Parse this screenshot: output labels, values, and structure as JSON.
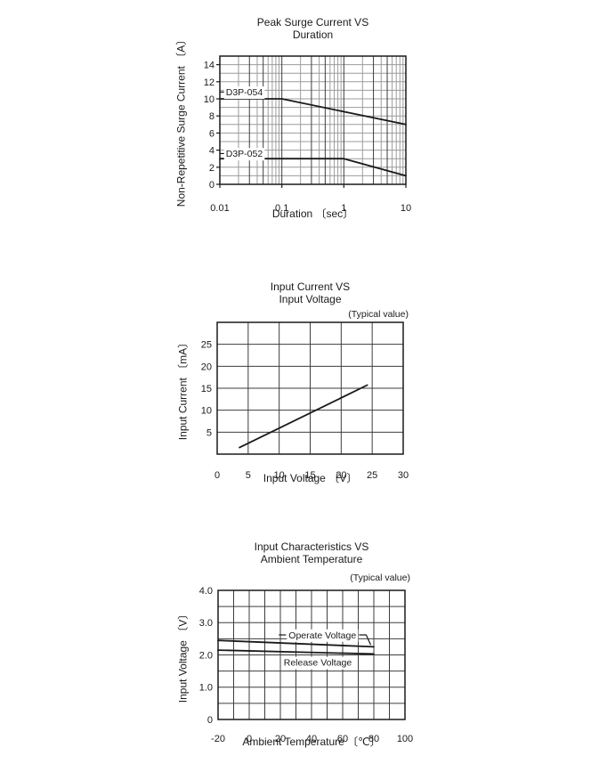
{
  "colors": {
    "background": "#ffffff",
    "plot_border": "#1a1a1a",
    "curve": "#1a1a1a",
    "grid_light": "#9c9c9c",
    "grid_dark": "#3d3d3d",
    "text": "#1a1a1a",
    "label_background": "#ffffff"
  },
  "chart_data": [
    {
      "id": "peak-surge-vs-duration",
      "type": "line",
      "title": "Peak Surge Current VS Duration",
      "title_lines": [
        "Peak Surge Current VS",
        "Duration"
      ],
      "note": "",
      "xlabel": "Duration 〔sec〕",
      "ylabel": "Non-Repetitive Surge Current 〔A〕",
      "x_scale": "log",
      "xlim": [
        0.01,
        10
      ],
      "x_ticks": [
        {
          "v": 0.01,
          "label": "0.01"
        },
        {
          "v": 0.1,
          "label": "0.1"
        },
        {
          "v": 1,
          "label": "1"
        },
        {
          "v": 10,
          "label": "10"
        }
      ],
      "log_minor_mults": [
        2,
        3,
        4,
        5,
        6,
        7,
        8,
        9
      ],
      "log_emphasized_mults": [
        3,
        5
      ],
      "ylim": [
        0,
        15
      ],
      "y_grid_step": 1,
      "y_ticks": [
        {
          "v": 0,
          "label": "0"
        },
        {
          "v": 2,
          "label": "2"
        },
        {
          "v": 4,
          "label": "4"
        },
        {
          "v": 6,
          "label": "6"
        },
        {
          "v": 8,
          "label": "8"
        },
        {
          "v": 10,
          "label": "10"
        },
        {
          "v": 12,
          "label": "12"
        },
        {
          "v": 14,
          "label": "14"
        }
      ],
      "outer_ticks": true,
      "grid": "log-mixed",
      "series": [
        {
          "name": "D3P-054",
          "points": [
            [
              0.01,
              10
            ],
            [
              0.1,
              10
            ],
            [
              10,
              7
            ]
          ],
          "label": {
            "text": "D3P-054",
            "x": 0.0125,
            "y": 10.8,
            "anchor": "start",
            "leader": "axis-dash"
          }
        },
        {
          "name": "D3P-052",
          "points": [
            [
              0.01,
              3
            ],
            [
              1,
              3
            ],
            [
              10,
              1
            ]
          ],
          "label": {
            "text": "D3P-052",
            "x": 0.0125,
            "y": 3.6,
            "anchor": "start",
            "leader": "axis-dash"
          }
        }
      ]
    },
    {
      "id": "input-current-vs-input-voltage",
      "type": "line",
      "title": "Input Current VS Input Voltage",
      "title_lines": [
        "Input Current VS",
        "Input Voltage"
      ],
      "note": "(Typical value)",
      "xlabel": "Input Voltage 〔V〕",
      "ylabel": "Input Current 〔mA〕",
      "x_scale": "linear",
      "xlim": [
        0,
        30
      ],
      "x_grid_step": 5,
      "x_ticks": [
        {
          "v": 0,
          "label": "0"
        },
        {
          "v": 5,
          "label": "5"
        },
        {
          "v": 10,
          "label": "10"
        },
        {
          "v": 15,
          "label": "15"
        },
        {
          "v": 20,
          "label": "20"
        },
        {
          "v": 25,
          "label": "25"
        },
        {
          "v": 30,
          "label": "30"
        }
      ],
      "ylim": [
        0,
        30
      ],
      "y_grid_step": 5,
      "y_ticks": [
        {
          "v": 5,
          "label": "5"
        },
        {
          "v": 10,
          "label": "10"
        },
        {
          "v": 15,
          "label": "15"
        },
        {
          "v": 20,
          "label": "20"
        },
        {
          "v": 25,
          "label": "25"
        }
      ],
      "outer_ticks": false,
      "grid": "linear-dark",
      "series": [
        {
          "name": "input-current",
          "points": [
            [
              3.6,
              1.5
            ],
            [
              24.2,
              15.7
            ]
          ]
        }
      ]
    },
    {
      "id": "input-characteristics-vs-ambient-temperature",
      "type": "line",
      "title": "Input Characteristics VS Ambient Temperature",
      "title_lines": [
        "Input Characteristics VS",
        "Ambient Temperature"
      ],
      "note": "(Typical value)",
      "xlabel": "Ambient Temperature 〔℃〕",
      "ylabel": "Input Voltage 〔V〕",
      "x_scale": "linear",
      "xlim": [
        -20,
        100
      ],
      "x_grid_step": 10,
      "x_ticks": [
        {
          "v": -20,
          "label": "-20"
        },
        {
          "v": 0,
          "label": "0"
        },
        {
          "v": 20,
          "label": "20"
        },
        {
          "v": 40,
          "label": "40"
        },
        {
          "v": 60,
          "label": "60"
        },
        {
          "v": 80,
          "label": "80"
        },
        {
          "v": 100,
          "label": "100"
        }
      ],
      "ylim": [
        0,
        4
      ],
      "y_grid_step": 0.5,
      "y_ticks": [
        {
          "v": 0,
          "label": "0"
        },
        {
          "v": 1,
          "label": "1.0"
        },
        {
          "v": 2,
          "label": "2.0"
        },
        {
          "v": 3,
          "label": "3.0"
        },
        {
          "v": 4,
          "label": "4.0"
        }
      ],
      "outer_ticks": false,
      "grid": "linear-dark",
      "series": [
        {
          "name": "operate-voltage",
          "points": [
            [
              -20,
              2.45
            ],
            [
              80,
              2.25
            ]
          ],
          "label": {
            "text": "Operate Voltage",
            "x": 47,
            "y": 2.62,
            "anchor": "middle",
            "leader": "dash-hook",
            "leader_to": [
              78,
              2.31
            ]
          }
        },
        {
          "name": "release-voltage",
          "points": [
            [
              -20,
              2.15
            ],
            [
              80,
              2.03
            ]
          ],
          "label": {
            "text": "Release Voltage",
            "x": 44,
            "y": 1.77,
            "anchor": "middle"
          }
        }
      ]
    }
  ]
}
